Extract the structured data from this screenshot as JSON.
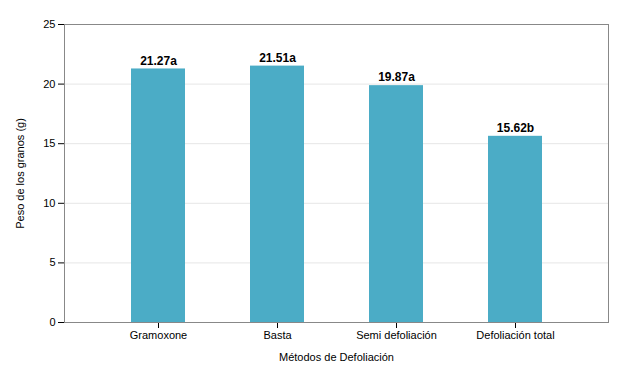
{
  "chart_data": {
    "type": "bar",
    "categories": [
      "Gramoxone",
      "Basta",
      "Semi defoliación",
      "Defoliación total"
    ],
    "values": [
      21.27,
      21.51,
      19.87,
      15.62
    ],
    "value_labels": [
      "21.27a",
      "21.51a",
      "19.87a",
      "15.62b"
    ],
    "data_labels": true,
    "color": "#4BACC6",
    "xlabel": "Métodos de Defoliación",
    "ylabel": "Peso de los granos (g)",
    "ylim": [
      0,
      25
    ],
    "yticks": [
      0,
      5,
      10,
      15,
      20,
      25
    ],
    "grid": true
  }
}
